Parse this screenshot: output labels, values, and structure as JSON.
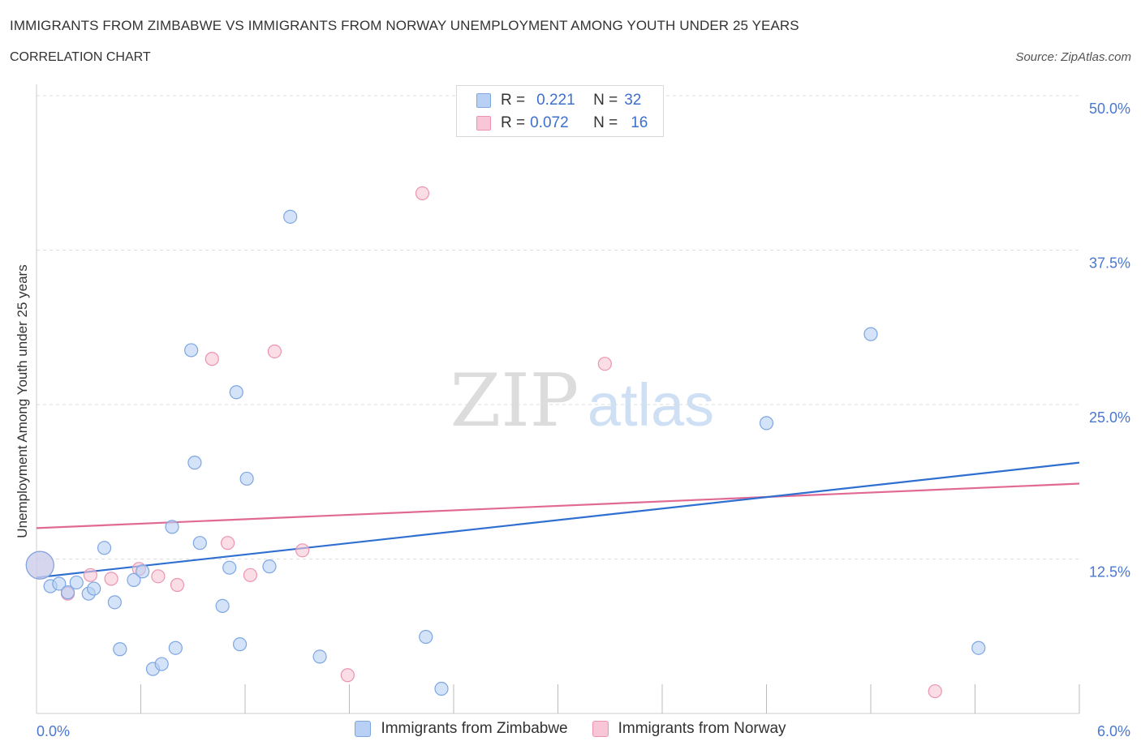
{
  "header": {
    "title": "IMMIGRANTS FROM ZIMBABWE VS IMMIGRANTS FROM NORWAY UNEMPLOYMENT AMONG YOUTH UNDER 25 YEARS",
    "subtitle": "CORRELATION CHART",
    "source": "Source: ZipAtlas.com"
  },
  "watermark": {
    "zip": "ZIP",
    "atlas": "atlas"
  },
  "legend": {
    "rows": [
      {
        "r_label": "R =",
        "r_value": "0.221",
        "n_label": "N =",
        "n_value": "32"
      },
      {
        "r_label": "R =",
        "r_value": "0.072",
        "n_label": "N =",
        "n_value": "16"
      }
    ]
  },
  "colors": {
    "zimbabwe_fill": "#b8d0f3",
    "zimbabwe_stroke": "#7da6e3",
    "zimbabwe_line": "#2f6fd1",
    "norway_fill": "#f8c6d6",
    "norway_stroke": "#eb94b1",
    "norway_line": "#e06a94",
    "axis_label": "#4a78d0"
  },
  "chart_data": {
    "type": "scatter",
    "title": "IMMIGRANTS FROM ZIMBABWE VS IMMIGRANTS FROM NORWAY UNEMPLOYMENT AMONG YOUTH UNDER 25 YEARS",
    "xlabel": "",
    "ylabel": "Unemployment Among Youth under 25 years",
    "xlim": [
      0,
      6
    ],
    "ylim": [
      0,
      50
    ],
    "x_tick_labels": [
      "0.0%",
      "6.0%"
    ],
    "y_tick_labels": [
      "12.5%",
      "25.0%",
      "37.5%",
      "50.0%"
    ],
    "y_ticks": [
      12.5,
      25,
      37.5,
      50
    ],
    "x_minor_ticks": [
      0.6,
      1.2,
      1.8,
      2.4,
      3.0,
      3.6,
      4.2,
      4.8,
      5.4,
      6.0
    ],
    "grid": true,
    "legend_position": "bottom-center",
    "series": [
      {
        "name": "Immigrants from Zimbabwe",
        "r": 0.221,
        "n": 32,
        "trend": {
          "x": [
            0,
            6
          ],
          "y": [
            11.0,
            20.3
          ]
        },
        "points": [
          {
            "x": 0.02,
            "y": 12.0,
            "big": true
          },
          {
            "x": 0.08,
            "y": 10.3
          },
          {
            "x": 0.13,
            "y": 10.5
          },
          {
            "x": 0.18,
            "y": 9.8
          },
          {
            "x": 0.23,
            "y": 10.6
          },
          {
            "x": 0.3,
            "y": 9.7
          },
          {
            "x": 0.33,
            "y": 10.1
          },
          {
            "x": 0.39,
            "y": 13.4
          },
          {
            "x": 0.45,
            "y": 9.0
          },
          {
            "x": 0.48,
            "y": 5.2
          },
          {
            "x": 0.56,
            "y": 10.8
          },
          {
            "x": 0.61,
            "y": 11.5
          },
          {
            "x": 0.67,
            "y": 3.6
          },
          {
            "x": 0.72,
            "y": 4.0
          },
          {
            "x": 0.78,
            "y": 15.1
          },
          {
            "x": 0.8,
            "y": 5.3
          },
          {
            "x": 0.89,
            "y": 29.4
          },
          {
            "x": 0.91,
            "y": 20.3
          },
          {
            "x": 0.94,
            "y": 13.8
          },
          {
            "x": 1.07,
            "y": 8.7
          },
          {
            "x": 1.11,
            "y": 11.8
          },
          {
            "x": 1.15,
            "y": 26.0
          },
          {
            "x": 1.17,
            "y": 5.6
          },
          {
            "x": 1.21,
            "y": 19.0
          },
          {
            "x": 1.34,
            "y": 11.9
          },
          {
            "x": 1.46,
            "y": 40.2
          },
          {
            "x": 1.63,
            "y": 4.6
          },
          {
            "x": 2.24,
            "y": 6.2
          },
          {
            "x": 2.33,
            "y": 2.0
          },
          {
            "x": 4.2,
            "y": 23.5
          },
          {
            "x": 4.8,
            "y": 30.7
          },
          {
            "x": 5.42,
            "y": 5.3
          }
        ]
      },
      {
        "name": "Immigrants from Norway",
        "r": 0.072,
        "n": 16,
        "trend": {
          "x": [
            0,
            6
          ],
          "y": [
            15.0,
            18.6
          ]
        },
        "points": [
          {
            "x": 0.02,
            "y": 12.0,
            "big": true
          },
          {
            "x": 0.18,
            "y": 9.7
          },
          {
            "x": 0.31,
            "y": 11.2
          },
          {
            "x": 0.43,
            "y": 10.9
          },
          {
            "x": 0.59,
            "y": 11.7
          },
          {
            "x": 0.7,
            "y": 11.1
          },
          {
            "x": 0.81,
            "y": 10.4
          },
          {
            "x": 1.01,
            "y": 28.7
          },
          {
            "x": 1.1,
            "y": 13.8
          },
          {
            "x": 1.23,
            "y": 11.2
          },
          {
            "x": 1.37,
            "y": 29.3
          },
          {
            "x": 1.53,
            "y": 13.2
          },
          {
            "x": 1.79,
            "y": 3.1
          },
          {
            "x": 2.22,
            "y": 42.1
          },
          {
            "x": 3.27,
            "y": 28.3
          },
          {
            "x": 5.17,
            "y": 1.8
          }
        ]
      }
    ]
  }
}
